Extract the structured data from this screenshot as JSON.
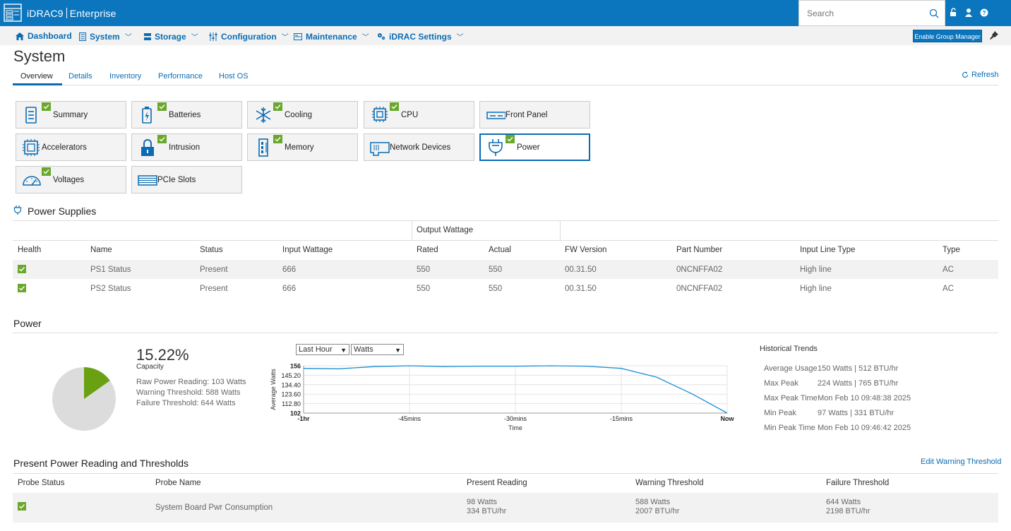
{
  "header": {
    "brand": "iDRAC9",
    "edition": "Enterprise",
    "search_placeholder": "Search"
  },
  "nav": {
    "items": [
      {
        "label": "Dashboard"
      },
      {
        "label": "System"
      },
      {
        "label": "Storage"
      },
      {
        "label": "Configuration"
      },
      {
        "label": "Maintenance"
      },
      {
        "label": "iDRAC Settings"
      }
    ],
    "group_manager_label": "Enable Group Manager"
  },
  "page": {
    "title": "System",
    "tabs": [
      "Overview",
      "Details",
      "Inventory",
      "Performance",
      "Host OS"
    ],
    "active_tab": "Overview",
    "refresh_label": "Refresh"
  },
  "tiles": [
    {
      "label": "Summary",
      "icon": "summary-icon",
      "status_ok": true
    },
    {
      "label": "Batteries",
      "icon": "battery-icon",
      "status_ok": true
    },
    {
      "label": "Cooling",
      "icon": "snowflake-icon",
      "status_ok": true
    },
    {
      "label": "CPU",
      "icon": "cpu-icon",
      "status_ok": true
    },
    {
      "label": "Front Panel",
      "icon": "front-panel-icon",
      "status_ok": false
    },
    {
      "label": "Accelerators",
      "icon": "accelerator-icon",
      "status_ok": false
    },
    {
      "label": "Intrusion",
      "icon": "lock-icon",
      "status_ok": true
    },
    {
      "label": "Memory",
      "icon": "memory-icon",
      "status_ok": true
    },
    {
      "label": "Network Devices",
      "icon": "network-card-icon",
      "status_ok": false
    },
    {
      "label": "Power",
      "icon": "plug-icon",
      "status_ok": true,
      "selected": true
    },
    {
      "label": "Voltages",
      "icon": "gauge-icon",
      "status_ok": true
    },
    {
      "label": "PCIe Slots",
      "icon": "pcie-slot-icon",
      "status_ok": false
    }
  ],
  "power_supplies": {
    "title": "Power Supplies",
    "group_header": "Output Wattage",
    "columns": [
      "Health",
      "Name",
      "Status",
      "Input Wattage",
      "Rated",
      "Actual",
      "FW Version",
      "Part Number",
      "Input Line Type",
      "Type"
    ],
    "rows": [
      {
        "name": "PS1 Status",
        "status": "Present",
        "input_wattage": "666",
        "rated": "550",
        "actual": "550",
        "fw_version": "00.31.50",
        "part_number": "0NCNFFA02",
        "input_line_type": "High line",
        "type": "AC"
      },
      {
        "name": "PS2 Status",
        "status": "Present",
        "input_wattage": "666",
        "rated": "550",
        "actual": "550",
        "fw_version": "00.31.50",
        "part_number": "0NCNFFA02",
        "input_line_type": "High line",
        "type": "AC"
      }
    ]
  },
  "power": {
    "title": "Power",
    "capacity_percent": "15.22%",
    "capacity_value": 15.22,
    "capacity_label": "Capacity",
    "raw_reading": "Raw Power Reading: 103 Watts",
    "warning_threshold": "Warning Threshold: 588 Watts",
    "failure_threshold": "Failure Threshold: 644 Watts",
    "range_select": "Last Hour",
    "unit_select": "Watts",
    "colors": {
      "used": "#6aa113",
      "free": "#dcdcdc",
      "line": "#1b8fd6"
    }
  },
  "chart_data": {
    "type": "line",
    "xlabel": "Time",
    "ylabel": "Average Watts",
    "x_ticks": [
      "-1hr",
      "-45mins",
      "-30mins",
      "-15mins",
      "Now"
    ],
    "y_ticks": [
      "156",
      "145.20",
      "134.40",
      "123.60",
      "112.80",
      "102"
    ],
    "ylim": [
      102,
      156
    ],
    "x": [
      -60,
      -55,
      -50,
      -45,
      -40,
      -35,
      -30,
      -25,
      -20,
      -15,
      -10,
      -5,
      0
    ],
    "series": [
      {
        "values": [
          153,
          152.5,
          155,
          156,
          155,
          155.5,
          155.5,
          156,
          155.5,
          153,
          143,
          124,
          102
        ]
      }
    ],
    "grid": true
  },
  "historical": {
    "title": "Historical Trends",
    "rows": [
      {
        "key": "Average Usage",
        "value": "150 Watts | 512 BTU/hr"
      },
      {
        "key": "Max Peak",
        "value": "224 Watts | 765 BTU/hr"
      },
      {
        "key": "Max Peak Time",
        "value": "Mon Feb 10 09:48:38 2025"
      },
      {
        "key": "Min Peak",
        "value": "97 Watts | 331 BTU/hr"
      },
      {
        "key": "Min Peak Time",
        "value": "Mon Feb 10 09:46:42 2025"
      }
    ]
  },
  "thresholds": {
    "title": "Present Power Reading and Thresholds",
    "edit_label": "Edit Warning Threshold",
    "columns": [
      "Probe Status",
      "Probe Name",
      "Present Reading",
      "Warning Threshold",
      "Failure Threshold"
    ],
    "rows": [
      {
        "probe_name": "System Board Pwr Consumption",
        "present_watts": "98 Watts",
        "present_btu": "334 BTU/hr",
        "warning_watts": "588 Watts",
        "warning_btu": "2007 BTU/hr",
        "failure_watts": "644 Watts",
        "failure_btu": "2198 BTU/hr"
      }
    ]
  }
}
